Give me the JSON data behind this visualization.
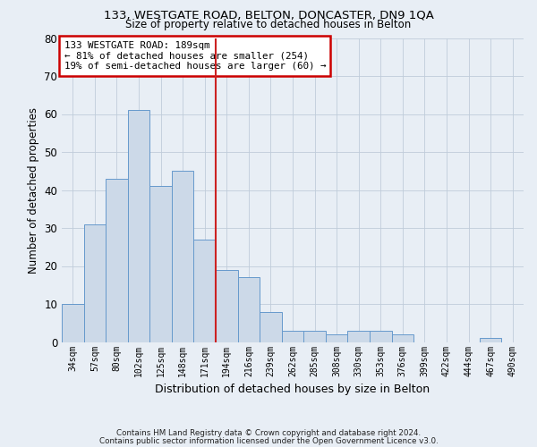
{
  "title_line1": "133, WESTGATE ROAD, BELTON, DONCASTER, DN9 1QA",
  "title_line2": "Size of property relative to detached houses in Belton",
  "xlabel": "Distribution of detached houses by size in Belton",
  "ylabel": "Number of detached properties",
  "categories": [
    "34sqm",
    "57sqm",
    "80sqm",
    "102sqm",
    "125sqm",
    "148sqm",
    "171sqm",
    "194sqm",
    "216sqm",
    "239sqm",
    "262sqm",
    "285sqm",
    "308sqm",
    "330sqm",
    "353sqm",
    "376sqm",
    "399sqm",
    "422sqm",
    "444sqm",
    "467sqm",
    "490sqm"
  ],
  "values": [
    10,
    31,
    43,
    61,
    41,
    45,
    27,
    19,
    17,
    8,
    3,
    3,
    2,
    3,
    3,
    2,
    0,
    0,
    0,
    1,
    0
  ],
  "bar_color": "#ccd9e8",
  "bar_edge_color": "#6699cc",
  "background_color": "#e8eef5",
  "vline_color": "#cc2222",
  "vline_x_index": 6.5,
  "annotation_text": "133 WESTGATE ROAD: 189sqm\n← 81% of detached houses are smaller (254)\n19% of semi-detached houses are larger (60) →",
  "annotation_box_color": "#ffffff",
  "annotation_box_edge_color": "#cc0000",
  "ylim": [
    0,
    80
  ],
  "yticks": [
    0,
    10,
    20,
    30,
    40,
    50,
    60,
    70,
    80
  ],
  "grid_color": "#c0ccda",
  "footer_line1": "Contains HM Land Registry data © Crown copyright and database right 2024.",
  "footer_line2": "Contains public sector information licensed under the Open Government Licence v3.0."
}
